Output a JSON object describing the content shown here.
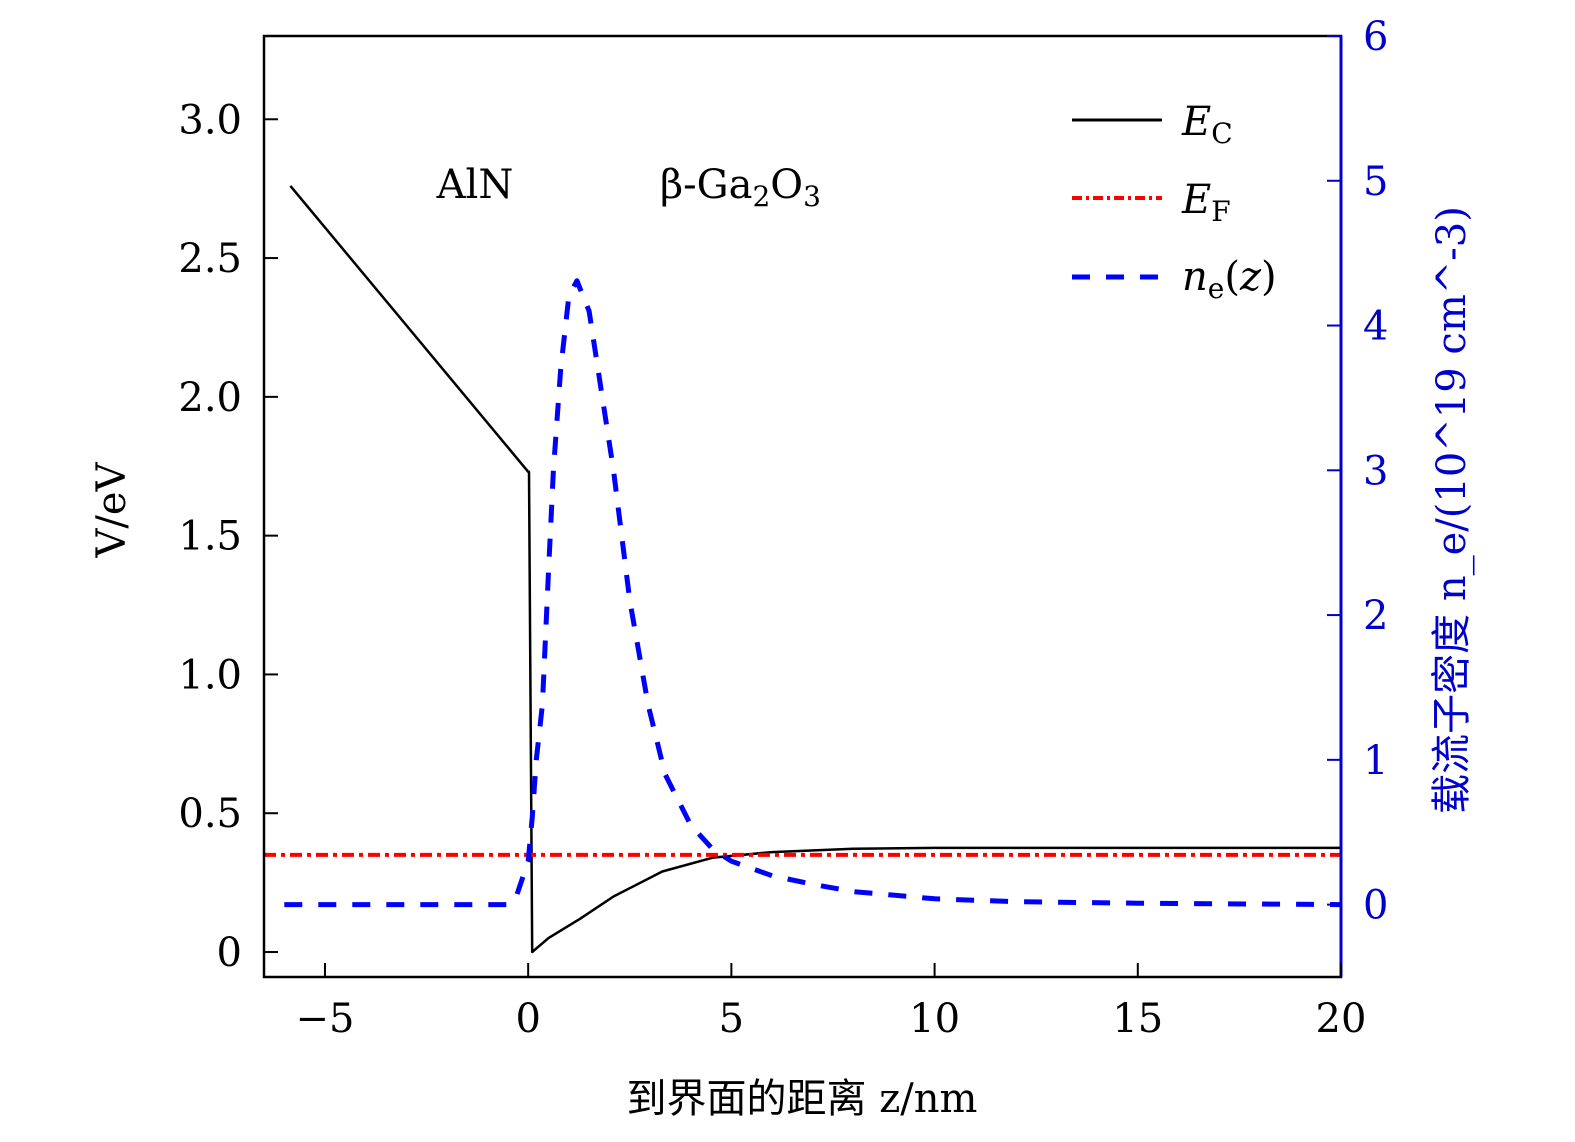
{
  "chart_data": {
    "type": "line",
    "xlabel": "到界面的距离 z/nm",
    "ylabel": "V/eV",
    "y2label": "载流子密度 n_e/(10^19 cm^-3)",
    "xlim": [
      -6.5,
      20
    ],
    "ylim": [
      -0.09,
      3.3
    ],
    "y2lim": [
      -0.5,
      6
    ],
    "xticks": [
      "−5",
      "0",
      "5",
      "10",
      "15",
      "20"
    ],
    "xtick_values": [
      -5,
      0,
      5,
      10,
      15,
      20
    ],
    "yticks": [
      "0",
      "0.5",
      "1.0",
      "1.5",
      "2.0",
      "2.5",
      "3.0"
    ],
    "ytick_values": [
      0,
      0.5,
      1.0,
      1.5,
      2.0,
      2.5,
      3.0
    ],
    "y2ticks": [
      "0",
      "1",
      "2",
      "3",
      "4",
      "5",
      "6"
    ],
    "y2tick_values": [
      0,
      1,
      2,
      3,
      4,
      5,
      6
    ],
    "grid": false,
    "legend_placement": "top-right",
    "annotations": [
      "AlN",
      "β-Ga2O3"
    ],
    "colors": {
      "axis_right": "#0000cc",
      "EC": "#000000",
      "EF": "#ff0000",
      "ne": "#0000ff"
    },
    "series": [
      {
        "name": "E_C",
        "axis": "left",
        "style": "solid",
        "x": [
          -5.85,
          0,
          0.02,
          0.1,
          0.5,
          1.28,
          2.1,
          3.3,
          4.55,
          6,
          8,
          10,
          20
        ],
        "y": [
          2.76,
          1.73,
          1.73,
          0,
          0.05,
          0.12,
          0.2,
          0.29,
          0.34,
          0.36,
          0.372,
          0.375,
          0.375
        ]
      },
      {
        "name": "E_F",
        "axis": "left",
        "style": "dash-dot",
        "x": [
          -6.5,
          20
        ],
        "y": [
          0.35,
          0.35
        ]
      },
      {
        "name": "n_e(z)",
        "axis": "right",
        "style": "dashed",
        "x": [
          -6,
          -0.5,
          -0.3,
          0,
          0.1,
          0.2,
          0.35,
          0.5,
          0.62,
          0.8,
          1.0,
          1.2,
          1.5,
          1.8,
          2.1,
          2.5,
          2.95,
          3.37,
          4.0,
          4.55,
          5,
          6,
          7,
          8,
          10,
          12,
          15,
          20
        ],
        "y": [
          0,
          0,
          0.05,
          0.3,
          0.6,
          1.0,
          1.38,
          2.3,
          3.0,
          3.7,
          4.2,
          4.31,
          4.1,
          3.55,
          3.0,
          2.1,
          1.38,
          0.9,
          0.55,
          0.38,
          0.3,
          0.2,
          0.14,
          0.09,
          0.04,
          0.02,
          0.01,
          0
        ]
      }
    ]
  }
}
